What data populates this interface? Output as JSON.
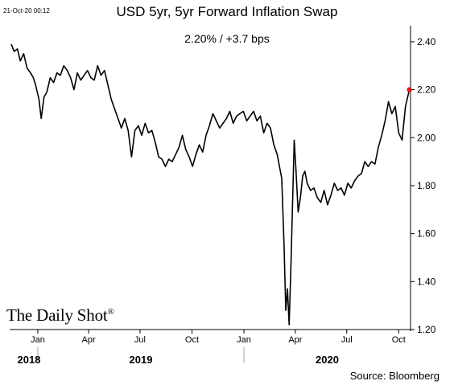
{
  "header": {
    "timestamp": "21-Oct-20 00:12",
    "title": "USD 5yr, 5yr Forward Inflation Swap",
    "subtitle": "2.20%  /  +3.7 bps"
  },
  "branding": {
    "logo_text": "The Daily Shot",
    "logo_mark": "®"
  },
  "footer": {
    "source": "Source: Bloomberg"
  },
  "colors": {
    "line": "#000000",
    "last_point": "#e31a1c",
    "grid": "#d9d9d9"
  },
  "chart_data": {
    "type": "line",
    "title": "USD 5yr, 5yr Forward Inflation Swap",
    "annotation": "2.20%  /  +3.7 bps",
    "y_axis_side": "right",
    "ylim": [
      1.2,
      2.45
    ],
    "yticks": [
      "2.40",
      "2.20",
      "2.00",
      "1.80",
      "1.60",
      "1.40",
      "1.20"
    ],
    "ytick_values": [
      2.4,
      2.2,
      2.0,
      1.8,
      1.6,
      1.4,
      1.2
    ],
    "xlim": [
      "2018-11-15",
      "2020-10-22"
    ],
    "month_ticks": [
      {
        "label": "Jan",
        "date": "2019-01-01"
      },
      {
        "label": "Apr",
        "date": "2019-04-01"
      },
      {
        "label": "Jul",
        "date": "2019-07-01"
      },
      {
        "label": "Oct",
        "date": "2019-10-01"
      },
      {
        "label": "Jan",
        "date": "2020-01-01"
      },
      {
        "label": "Apr",
        "date": "2020-04-01"
      },
      {
        "label": "Jul",
        "date": "2020-07-01"
      },
      {
        "label": "Oct",
        "date": "2020-10-01"
      }
    ],
    "year_labels": [
      {
        "label": "2018",
        "start": "2018-11-15",
        "end": "2019-01-01"
      },
      {
        "label": "2019",
        "start": "2019-01-01",
        "end": "2020-01-01"
      },
      {
        "label": "2020",
        "start": "2020-01-01",
        "end": "2020-10-22"
      }
    ],
    "grid": false,
    "legend": "none",
    "series": [
      {
        "x": [
          "2018-11-15",
          "2018-11-20",
          "2018-11-26",
          "2018-12-01",
          "2018-12-07",
          "2018-12-13",
          "2018-12-19",
          "2018-12-24",
          "2018-12-28",
          "2019-01-03",
          "2019-01-07",
          "2019-01-12",
          "2019-01-17",
          "2019-01-23",
          "2019-01-29",
          "2019-02-04",
          "2019-02-10",
          "2019-02-16",
          "2019-02-22",
          "2019-02-28",
          "2019-03-06",
          "2019-03-12",
          "2019-03-18",
          "2019-03-24",
          "2019-03-30",
          "2019-04-05",
          "2019-04-11",
          "2019-04-17",
          "2019-04-23",
          "2019-04-29",
          "2019-05-05",
          "2019-05-11",
          "2019-05-17",
          "2019-05-23",
          "2019-05-29",
          "2019-06-04",
          "2019-06-10",
          "2019-06-16",
          "2019-06-22",
          "2019-06-28",
          "2019-07-04",
          "2019-07-10",
          "2019-07-16",
          "2019-07-22",
          "2019-07-28",
          "2019-08-03",
          "2019-08-09",
          "2019-08-15",
          "2019-08-21",
          "2019-08-27",
          "2019-09-02",
          "2019-09-08",
          "2019-09-14",
          "2019-09-20",
          "2019-09-26",
          "2019-10-02",
          "2019-10-08",
          "2019-10-14",
          "2019-10-20",
          "2019-10-26",
          "2019-11-01",
          "2019-11-07",
          "2019-11-13",
          "2019-11-19",
          "2019-11-25",
          "2019-12-01",
          "2019-12-07",
          "2019-12-13",
          "2019-12-19",
          "2019-12-25",
          "2019-12-31",
          "2020-01-06",
          "2020-01-12",
          "2020-01-18",
          "2020-01-24",
          "2020-01-30",
          "2020-02-05",
          "2020-02-11",
          "2020-02-17",
          "2020-02-23",
          "2020-02-29",
          "2020-03-04",
          "2020-03-08",
          "2020-03-12",
          "2020-03-15",
          "2020-03-18",
          "2020-03-21",
          "2020-03-24",
          "2020-03-27",
          "2020-03-30",
          "2020-04-02",
          "2020-04-06",
          "2020-04-10",
          "2020-04-14",
          "2020-04-18",
          "2020-04-22",
          "2020-04-28",
          "2020-05-04",
          "2020-05-10",
          "2020-05-16",
          "2020-05-22",
          "2020-05-28",
          "2020-06-03",
          "2020-06-09",
          "2020-06-15",
          "2020-06-21",
          "2020-06-27",
          "2020-07-03",
          "2020-07-09",
          "2020-07-15",
          "2020-07-21",
          "2020-07-27",
          "2020-08-02",
          "2020-08-08",
          "2020-08-14",
          "2020-08-20",
          "2020-08-26",
          "2020-09-01",
          "2020-09-07",
          "2020-09-13",
          "2020-09-19",
          "2020-09-25",
          "2020-10-01",
          "2020-10-07",
          "2020-10-13",
          "2020-10-20"
        ],
        "y": [
          2.39,
          2.36,
          2.37,
          2.32,
          2.35,
          2.29,
          2.27,
          2.25,
          2.22,
          2.16,
          2.08,
          2.17,
          2.19,
          2.25,
          2.23,
          2.27,
          2.26,
          2.3,
          2.28,
          2.25,
          2.2,
          2.27,
          2.24,
          2.26,
          2.28,
          2.25,
          2.24,
          2.3,
          2.26,
          2.28,
          2.22,
          2.16,
          2.12,
          2.08,
          2.04,
          2.08,
          2.03,
          1.92,
          2.03,
          2.05,
          2.01,
          2.06,
          2.02,
          2.03,
          1.98,
          1.92,
          1.91,
          1.88,
          1.91,
          1.9,
          1.93,
          1.96,
          2.01,
          1.95,
          1.92,
          1.88,
          1.93,
          1.97,
          1.94,
          2.01,
          2.05,
          2.1,
          2.07,
          2.04,
          2.06,
          2.08,
          2.11,
          2.06,
          2.09,
          2.1,
          2.11,
          2.07,
          2.09,
          2.11,
          2.07,
          2.09,
          2.02,
          2.06,
          2.04,
          1.97,
          1.93,
          1.88,
          1.83,
          1.55,
          1.28,
          1.37,
          1.22,
          1.45,
          1.72,
          1.99,
          1.87,
          1.69,
          1.75,
          1.84,
          1.86,
          1.81,
          1.78,
          1.79,
          1.75,
          1.73,
          1.78,
          1.72,
          1.76,
          1.81,
          1.78,
          1.79,
          1.76,
          1.81,
          1.79,
          1.82,
          1.84,
          1.85,
          1.9,
          1.88,
          1.9,
          1.89,
          1.96,
          2.01,
          2.07,
          2.15,
          2.1,
          2.13,
          2.02,
          1.99,
          2.13,
          2.2
        ]
      }
    ]
  }
}
